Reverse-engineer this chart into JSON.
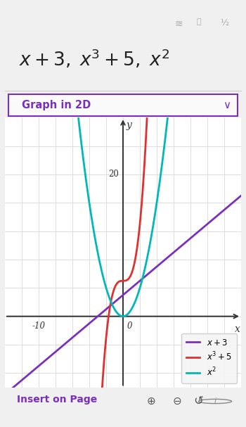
{
  "bg_color": "#f0f0f0",
  "graph_bg_color": "#ffffff",
  "header_bg": "#ffffff",
  "toolbar_text": "Graph in 2D",
  "toolbar_border_color": "#7b2fbe",
  "toolbar_text_color": "#7b2fbe",
  "xlim": [
    -14,
    14
  ],
  "ylim": [
    -10,
    28
  ],
  "xtick_label": "-10",
  "xtick_val": -10,
  "ytick_label": "20",
  "ytick_val": 20,
  "origin_label": "0",
  "x_axis_label": "x",
  "y_axis_label": "y",
  "grid_color": "#dddddd",
  "axis_color": "#333333",
  "line1_color": "#7b2fbe",
  "line2_color": "#e03030",
  "line3_color": "#00b8b8",
  "line_width": 2.0,
  "bottom_text": "Insert on Page",
  "bottom_text_color": "#7b2fbe",
  "fig_width": 3.5,
  "fig_height": 6.07
}
